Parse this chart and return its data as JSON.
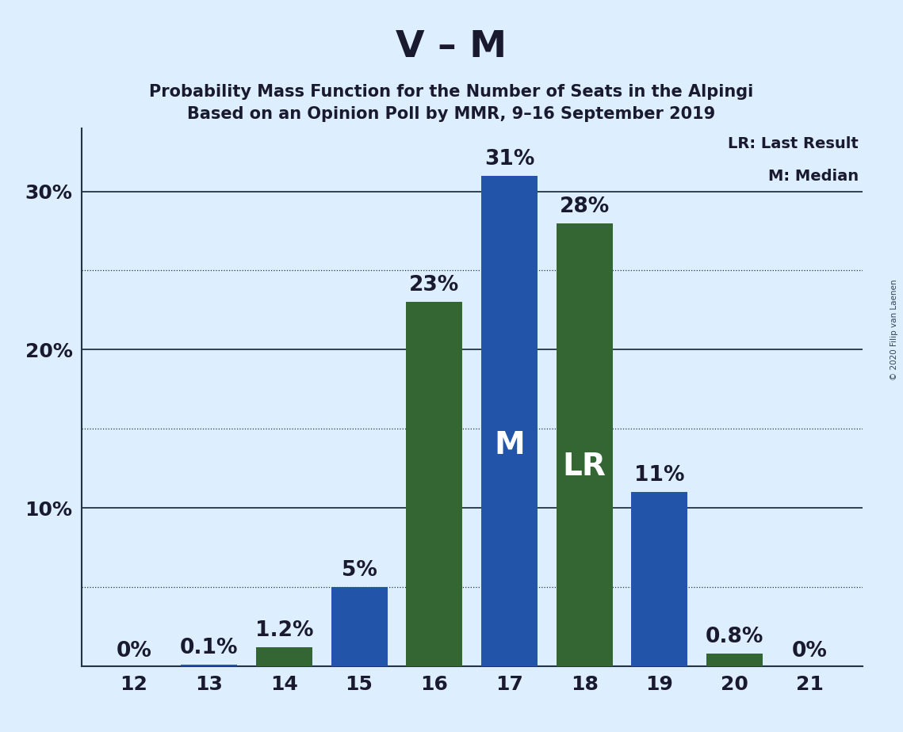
{
  "title": "V – M",
  "subtitle1": "Probability Mass Function for the Number of Seats in the Alpingi",
  "subtitle2": "Based on an Opinion Poll by MMR, 9–16 September 2019",
  "copyright": "© 2020 Filip van Laenen",
  "seats": [
    12,
    13,
    14,
    15,
    16,
    17,
    18,
    19,
    20,
    21
  ],
  "blue_values": [
    0.0,
    0.1,
    0.0,
    5.0,
    0.0,
    31.0,
    0.0,
    11.0,
    0.0,
    0.0
  ],
  "green_values": [
    0.0,
    0.0,
    1.2,
    0.0,
    23.0,
    0.0,
    28.0,
    0.0,
    0.8,
    0.0
  ],
  "blue_color": "#2255aa",
  "green_color": "#336633",
  "background_color": "#ddeeff",
  "title_fontsize": 34,
  "subtitle_fontsize": 15,
  "tick_fontsize": 18,
  "bar_label_fontsize": 19,
  "bar_inner_fontsize": 28,
  "ylim": [
    0,
    34
  ],
  "solid_gridlines": [
    10,
    20,
    30
  ],
  "dotted_gridlines": [
    5,
    15,
    25
  ],
  "median_seat": 17,
  "lr_seat": 18,
  "median_label": "M",
  "lr_label": "LR",
  "bar_width": 0.75
}
